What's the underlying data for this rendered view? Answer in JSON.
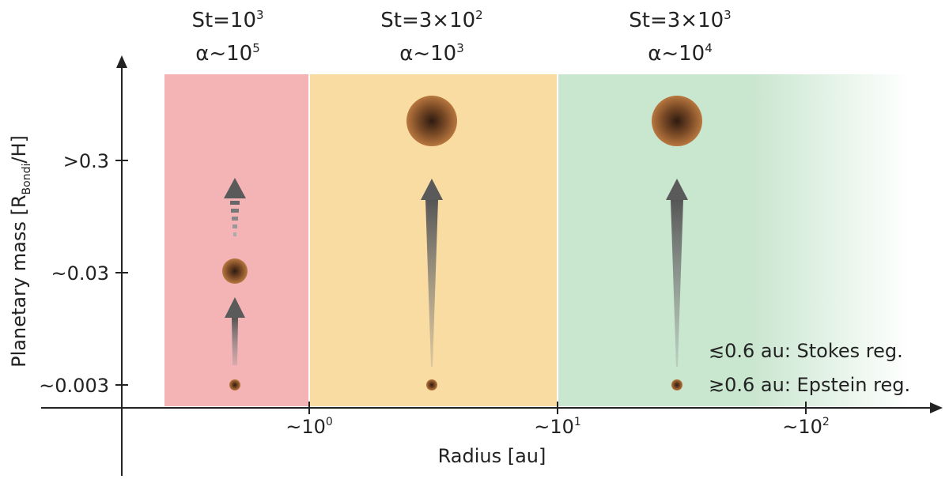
{
  "regions": [
    {
      "st_base": "St=10",
      "st_exp": "3",
      "alpha_base": "α~10",
      "alpha_exp": "5",
      "color": "#f4b4b6"
    },
    {
      "st_base": "St=3×10",
      "st_exp": "2",
      "alpha_base": "α~10",
      "alpha_exp": "3",
      "color": "#f9dca2"
    },
    {
      "st_base": "St=3×10",
      "st_exp": "3",
      "alpha_base": "α~10",
      "alpha_exp": "4",
      "color": "#c9e6cf"
    }
  ],
  "y_axis": {
    "label_main": "Planetary mass [R",
    "label_sub": "Bondi",
    "label_end": "/H]",
    "ticks": [
      ">0.3",
      "~0.03",
      "~0.003"
    ]
  },
  "x_axis": {
    "label": "Radius [au]",
    "ticks": [
      {
        "base": "~10",
        "exp": "0"
      },
      {
        "base": "~10",
        "exp": "1"
      },
      {
        "base": "~10",
        "exp": "2"
      }
    ]
  },
  "legend": {
    "line1": "≲0.6 au: Stokes reg.",
    "line2": "≳0.6 au: Epstein reg."
  },
  "colors": {
    "axis": "#222222",
    "arrow": "#5a5a5a",
    "planet_core": "#3b2417",
    "planet_edge": "#b0703a"
  }
}
